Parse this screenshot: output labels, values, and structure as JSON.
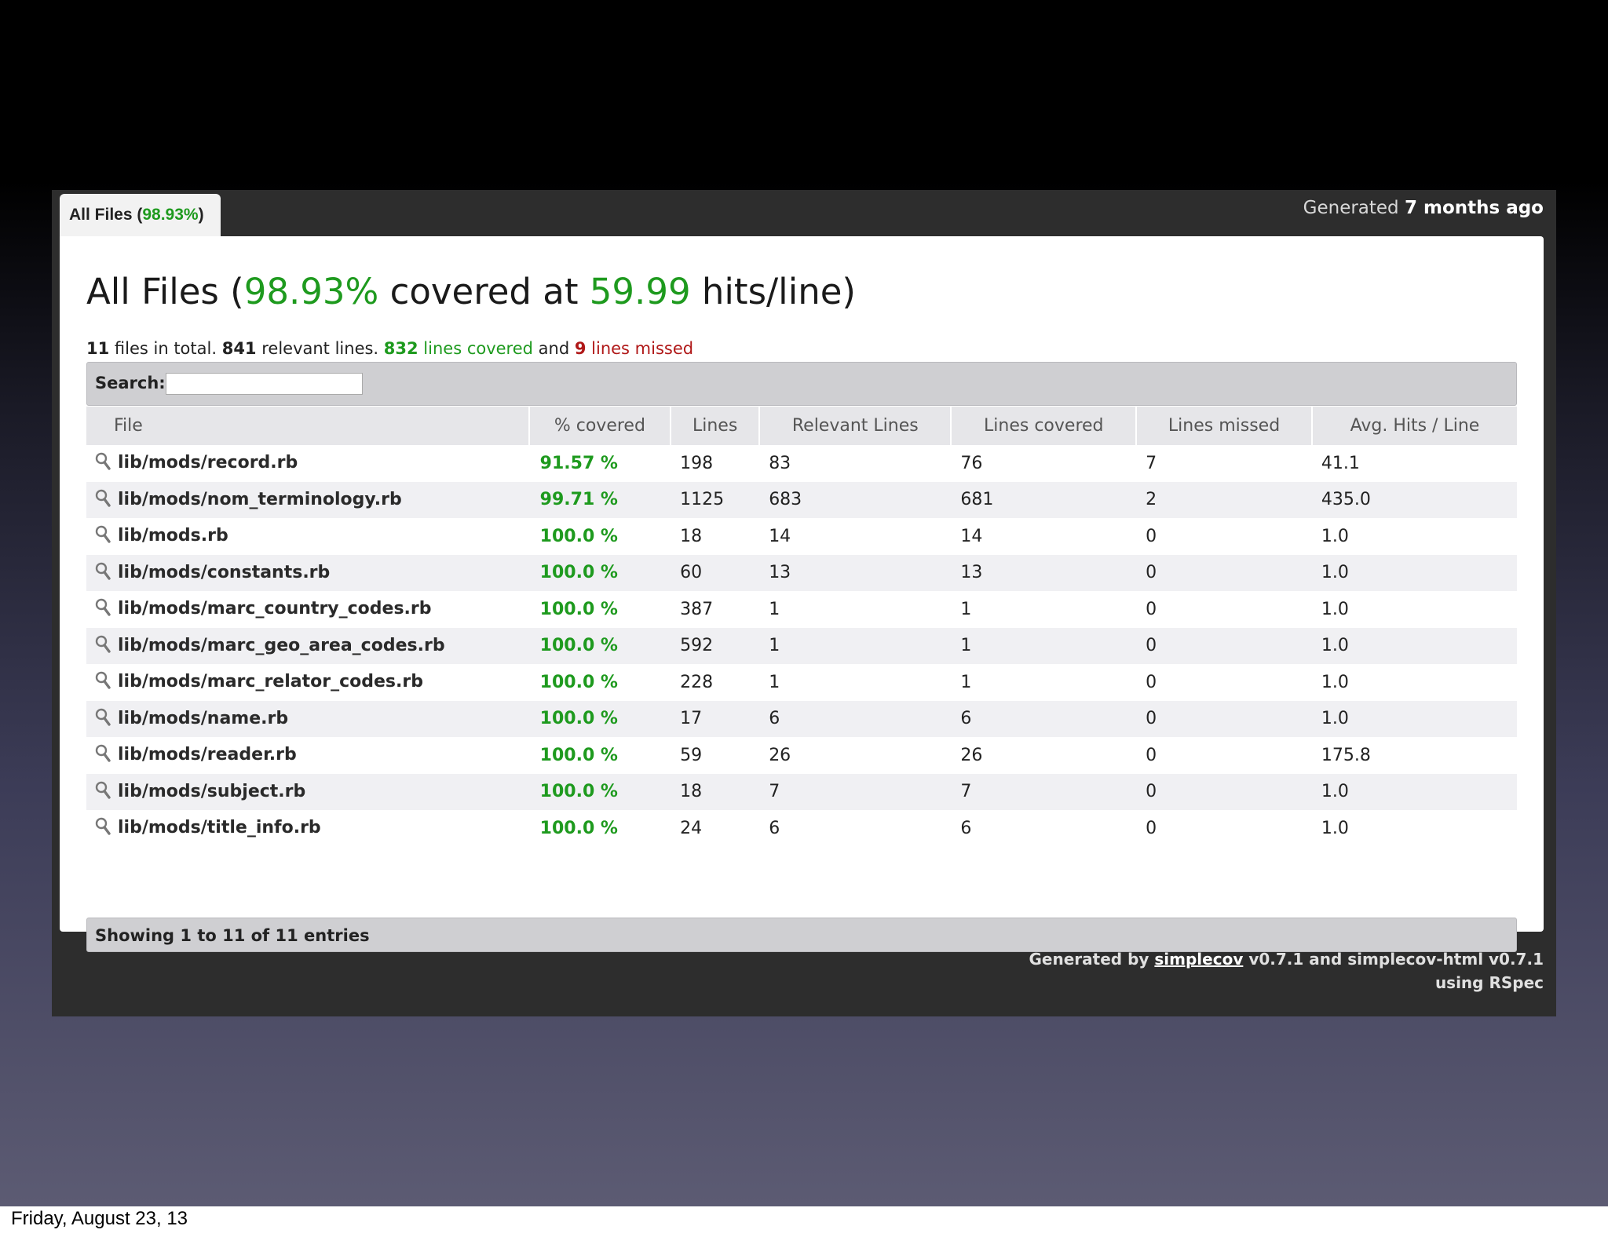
{
  "tab": {
    "label": "All Files (",
    "percent": "98.93%",
    "close": ")"
  },
  "generated_top": {
    "prefix": "Generated ",
    "when": "7 months ago"
  },
  "title": {
    "prefix": "All Files (",
    "percent": "98.93%",
    "middle": " covered at ",
    "hits": "59.99",
    "suffix": " hits/line)"
  },
  "summary": {
    "files": "11",
    "files_text": " files in total. ",
    "relevant": "841",
    "relevant_text": " relevant lines. ",
    "covered": "832",
    "covered_text": " lines covered",
    "and_text": " and ",
    "missed": "9",
    "missed_text": " lines missed"
  },
  "search": {
    "label": "Search:",
    "value": ""
  },
  "table": {
    "headers": [
      "File",
      "% covered",
      "Lines",
      "Relevant Lines",
      "Lines covered",
      "Lines missed",
      "Avg. Hits / Line"
    ],
    "rows": [
      {
        "file": "lib/mods/record.rb",
        "pct": "91.57 %",
        "lines": "198",
        "relevant": "83",
        "covered": "76",
        "missed": "7",
        "avg": "41.1"
      },
      {
        "file": "lib/mods/nom_terminology.rb",
        "pct": "99.71 %",
        "lines": "1125",
        "relevant": "683",
        "covered": "681",
        "missed": "2",
        "avg": "435.0"
      },
      {
        "file": "lib/mods.rb",
        "pct": "100.0 %",
        "lines": "18",
        "relevant": "14",
        "covered": "14",
        "missed": "0",
        "avg": "1.0"
      },
      {
        "file": "lib/mods/constants.rb",
        "pct": "100.0 %",
        "lines": "60",
        "relevant": "13",
        "covered": "13",
        "missed": "0",
        "avg": "1.0"
      },
      {
        "file": "lib/mods/marc_country_codes.rb",
        "pct": "100.0 %",
        "lines": "387",
        "relevant": "1",
        "covered": "1",
        "missed": "0",
        "avg": "1.0"
      },
      {
        "file": "lib/mods/marc_geo_area_codes.rb",
        "pct": "100.0 %",
        "lines": "592",
        "relevant": "1",
        "covered": "1",
        "missed": "0",
        "avg": "1.0"
      },
      {
        "file": "lib/mods/marc_relator_codes.rb",
        "pct": "100.0 %",
        "lines": "228",
        "relevant": "1",
        "covered": "1",
        "missed": "0",
        "avg": "1.0"
      },
      {
        "file": "lib/mods/name.rb",
        "pct": "100.0 %",
        "lines": "17",
        "relevant": "6",
        "covered": "6",
        "missed": "0",
        "avg": "1.0"
      },
      {
        "file": "lib/mods/reader.rb",
        "pct": "100.0 %",
        "lines": "59",
        "relevant": "26",
        "covered": "26",
        "missed": "0",
        "avg": "175.8"
      },
      {
        "file": "lib/mods/subject.rb",
        "pct": "100.0 %",
        "lines": "18",
        "relevant": "7",
        "covered": "7",
        "missed": "0",
        "avg": "1.0"
      },
      {
        "file": "lib/mods/title_info.rb",
        "pct": "100.0 %",
        "lines": "24",
        "relevant": "6",
        "covered": "6",
        "missed": "0",
        "avg": "1.0"
      }
    ]
  },
  "entries_info": "Showing 1 to 11 of 11 entries",
  "credits": {
    "prefix": "Generated by ",
    "link": "simplecov",
    "suffix": " v0.7.1 and simplecov-html v0.7.1",
    "line2": "using RSpec"
  },
  "slide_footer": "Friday, August 23, 13",
  "colors": {
    "green": "#1e9a1e",
    "red": "#b01818"
  },
  "icons": {
    "row_icon": "magnifier-icon"
  }
}
